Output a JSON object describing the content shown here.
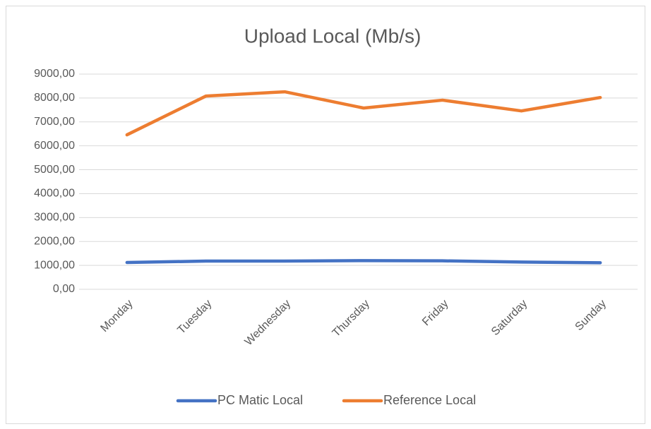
{
  "chart_data": {
    "type": "line",
    "title": "Upload Local (Mb/s)",
    "categories": [
      "Monday",
      "Tuesday",
      "Wednesday",
      "Thursday",
      "Friday",
      "Saturday",
      "Sunday"
    ],
    "series": [
      {
        "name": "PC Matic Local",
        "color": "#4472c4",
        "values": [
          1120,
          1180,
          1180,
          1200,
          1190,
          1140,
          1110
        ]
      },
      {
        "name": "Reference Local",
        "color": "#ed7d31",
        "values": [
          6460,
          8080,
          8260,
          7580,
          7910,
          7460,
          8020
        ]
      }
    ],
    "ylim": [
      0,
      9000
    ],
    "yticks": [
      {
        "value": 0,
        "label": "0,00"
      },
      {
        "value": 1000,
        "label": "1000,00"
      },
      {
        "value": 2000,
        "label": "2000,00"
      },
      {
        "value": 3000,
        "label": "3000,00"
      },
      {
        "value": 4000,
        "label": "4000,00"
      },
      {
        "value": 5000,
        "label": "5000,00"
      },
      {
        "value": 6000,
        "label": "6000,00"
      },
      {
        "value": 7000,
        "label": "7000,00"
      },
      {
        "value": 8000,
        "label": "8000,00"
      },
      {
        "value": 9000,
        "label": "9000,00"
      }
    ],
    "grid": true,
    "legend": "bottom"
  }
}
